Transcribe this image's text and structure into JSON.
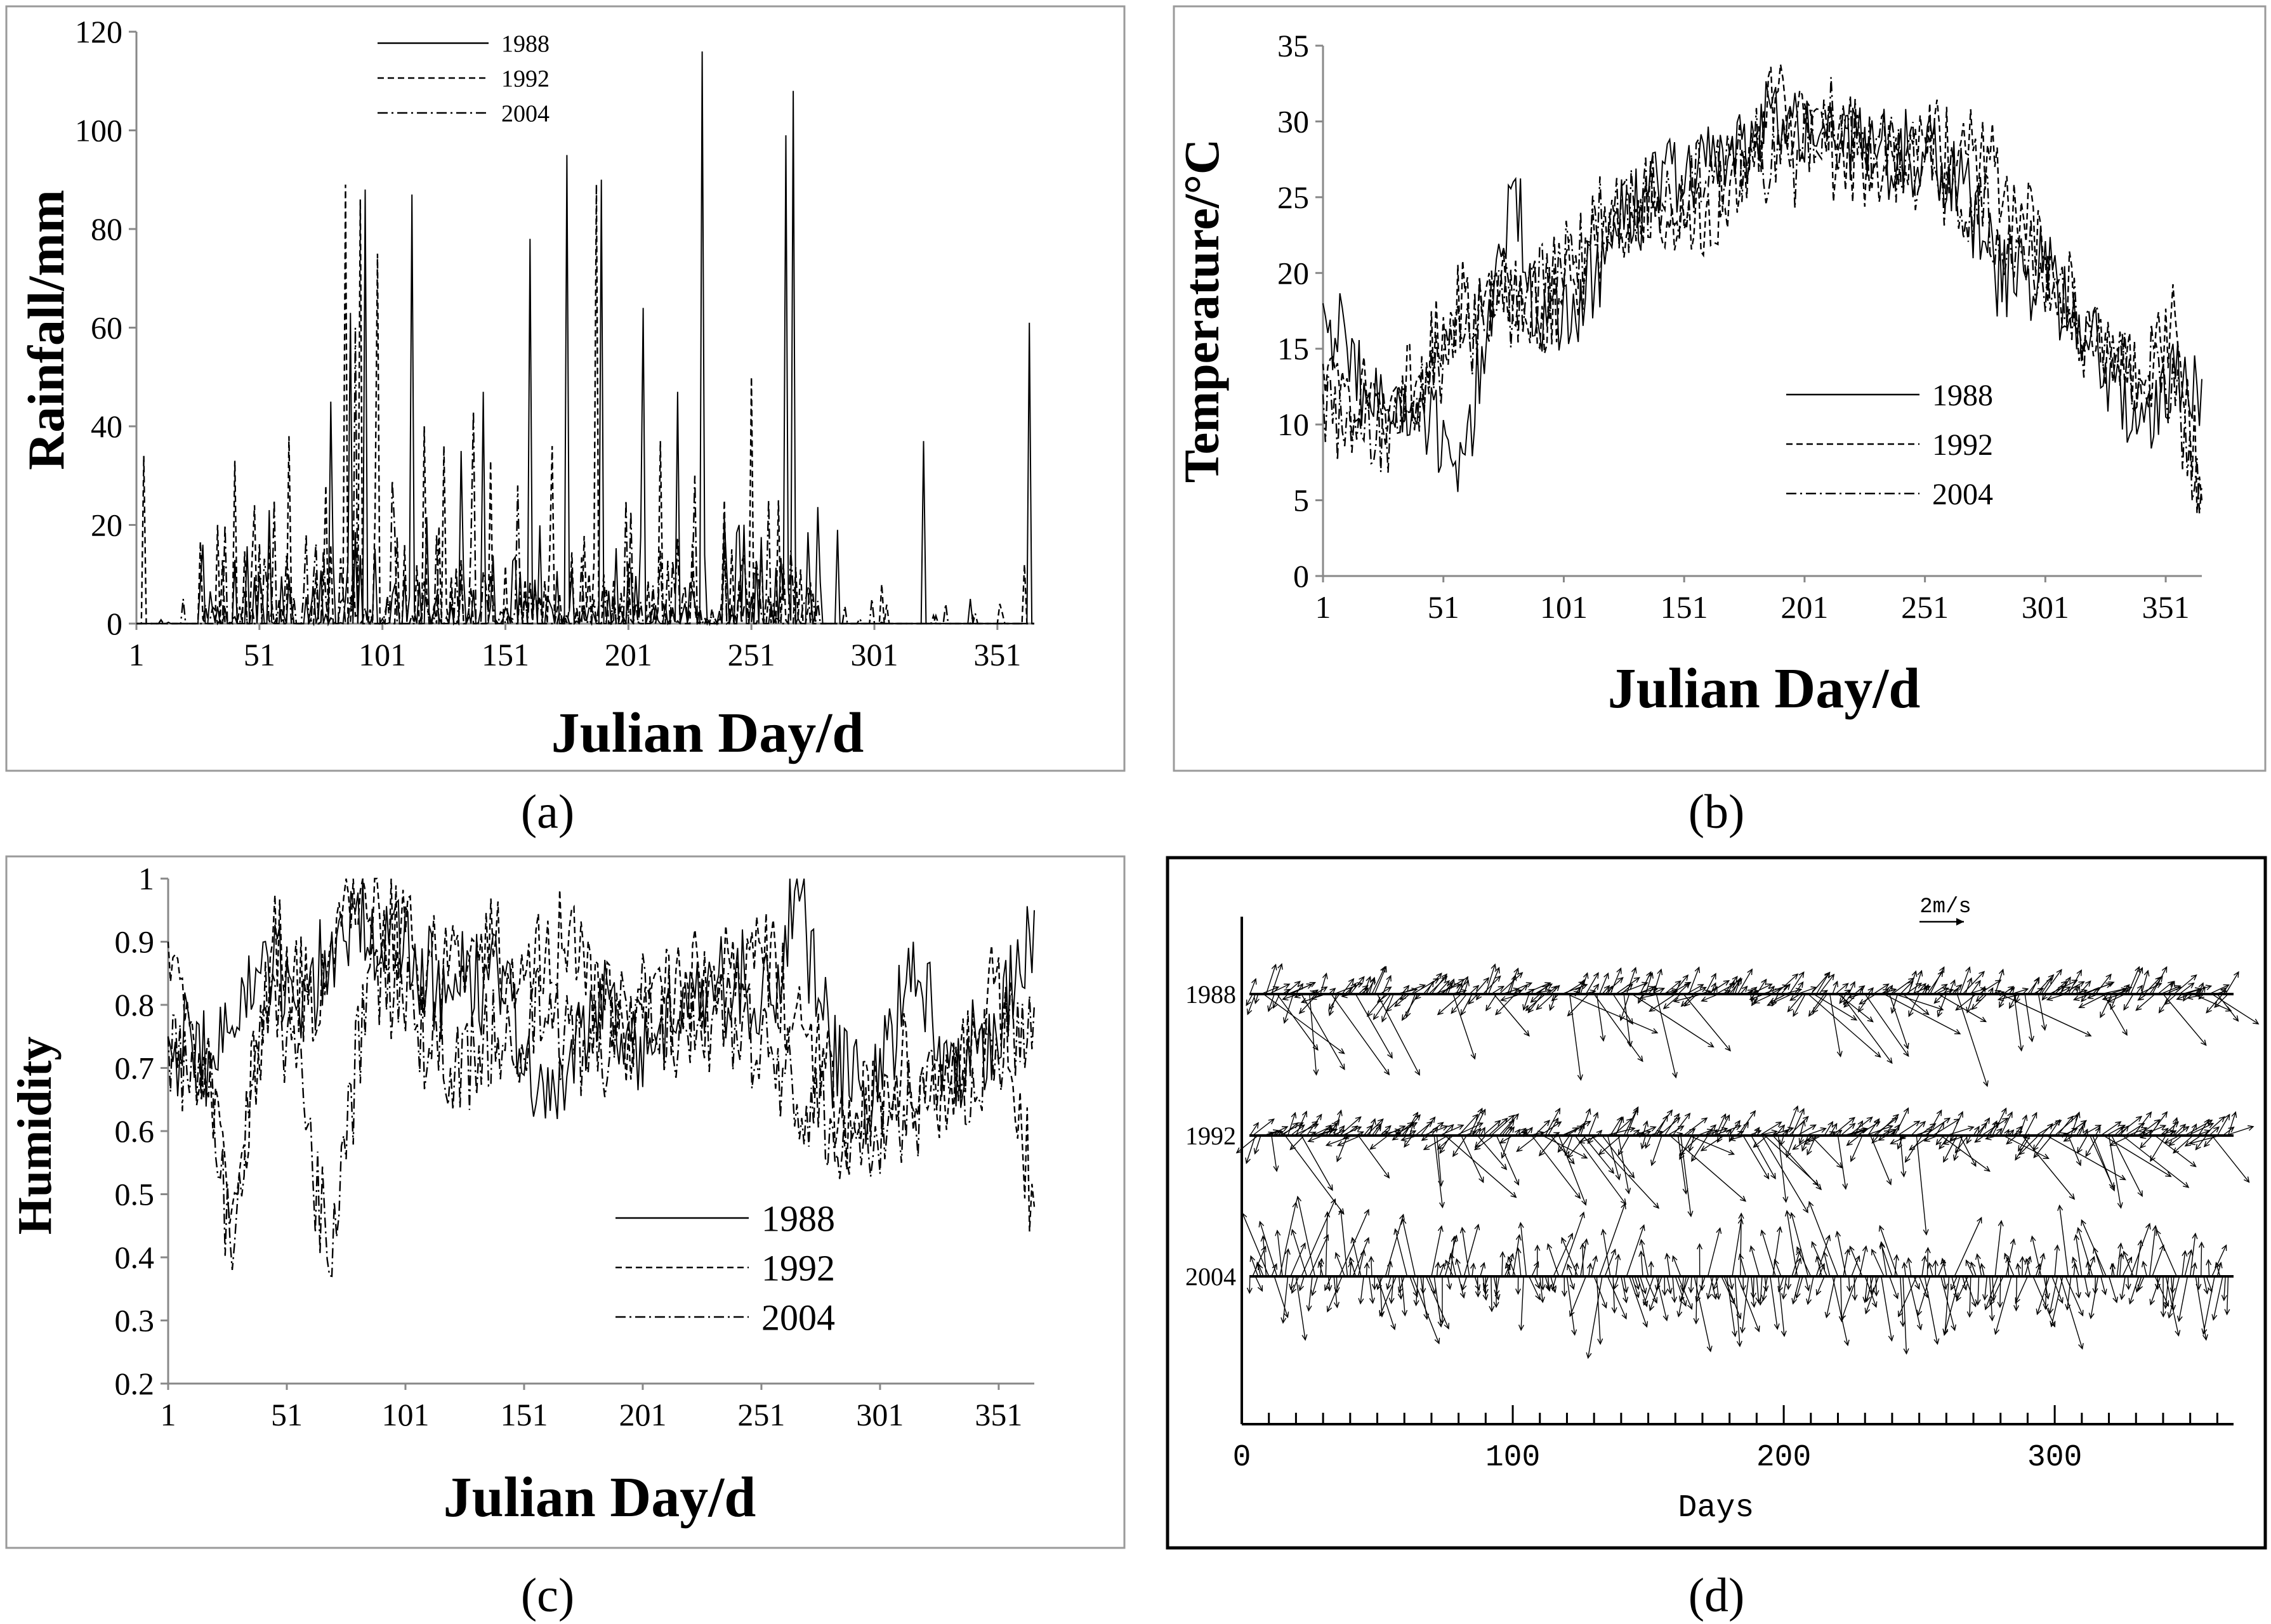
{
  "figure": {
    "panel_labels": [
      "(a)",
      "(b)",
      "(c)",
      "(d)"
    ]
  },
  "chart_data": [
    {
      "panel": "(a)",
      "type": "line",
      "xlabel": "Julian Day/d",
      "ylabel": "Rainfall/mm",
      "xlim": [
        1,
        366
      ],
      "ylim": [
        0,
        120
      ],
      "xticks": [
        1,
        51,
        101,
        151,
        201,
        251,
        301,
        351
      ],
      "yticks": [
        0,
        20,
        40,
        60,
        80,
        100,
        120
      ],
      "legend_position": "top-center",
      "series": [
        {
          "name": "1988",
          "style": "solid",
          "peaks": [
            [
              28,
              16
            ],
            [
              55,
              23
            ],
            [
              80,
              45
            ],
            [
              88,
              63
            ],
            [
              94,
              88
            ],
            [
              113,
              87
            ],
            [
              133,
              35
            ],
            [
              142,
              47
            ],
            [
              161,
              78
            ],
            [
              176,
              95
            ],
            [
              190,
              90
            ],
            [
              207,
              64
            ],
            [
              221,
              47
            ],
            [
              231,
              116
            ],
            [
              246,
              20
            ],
            [
              265,
              99
            ],
            [
              268,
              108
            ],
            [
              286,
              19
            ],
            [
              321,
              37
            ],
            [
              340,
              5
            ],
            [
              364,
              61
            ]
          ]
        },
        {
          "name": "1992",
          "style": "dashed",
          "peaks": [
            [
              4,
              34
            ],
            [
              34,
              20
            ],
            [
              41,
              33
            ],
            [
              49,
              24
            ],
            [
              63,
              38
            ],
            [
              78,
              28
            ],
            [
              86,
              89
            ],
            [
              92,
              86
            ],
            [
              99,
              75
            ],
            [
              118,
              40
            ],
            [
              126,
              36
            ],
            [
              145,
              33
            ],
            [
              170,
              36
            ],
            [
              188,
              89
            ],
            [
              214,
              37
            ],
            [
              240,
              25
            ],
            [
              251,
              50
            ],
            [
              262,
              25
            ],
            [
              304,
              8
            ],
            [
              352,
              4
            ],
            [
              362,
              12
            ]
          ]
        },
        {
          "name": "2004",
          "style": "dash-dot",
          "peaks": [
            [
              20,
              5
            ],
            [
              37,
              20
            ],
            [
              57,
              25
            ],
            [
              70,
              18
            ],
            [
              90,
              60
            ],
            [
              105,
              29
            ],
            [
              138,
              43
            ],
            [
              156,
              28
            ],
            [
              200,
              25
            ],
            [
              228,
              30
            ],
            [
              258,
              25
            ],
            [
              300,
              5
            ],
            [
              330,
              4
            ]
          ]
        }
      ]
    },
    {
      "panel": "(b)",
      "type": "line",
      "xlabel": "Julian Day/d",
      "ylabel": "Temperature/°C",
      "xlim": [
        1,
        366
      ],
      "ylim": [
        0,
        35
      ],
      "xticks": [
        1,
        51,
        101,
        151,
        201,
        251,
        301,
        351
      ],
      "yticks": [
        0,
        5,
        10,
        15,
        20,
        25,
        30,
        35
      ],
      "legend_position": "middle-right",
      "series": [
        {
          "name": "1988",
          "style": "solid",
          "points": [
            [
              1,
              18
            ],
            [
              20,
              12
            ],
            [
              40,
              10
            ],
            [
              60,
              8
            ],
            [
              72,
              19
            ],
            [
              80,
              26
            ],
            [
              90,
              17
            ],
            [
              100,
              16
            ],
            [
              120,
              22
            ],
            [
              140,
              26
            ],
            [
              160,
              27
            ],
            [
              180,
              29
            ],
            [
              195,
              31
            ],
            [
              210,
              29
            ],
            [
              230,
              28
            ],
            [
              250,
              28
            ],
            [
              265,
              26
            ],
            [
              280,
              20
            ],
            [
              300,
              20
            ],
            [
              320,
              16
            ],
            [
              340,
              10
            ],
            [
              355,
              13
            ],
            [
              366,
              13
            ]
          ]
        },
        {
          "name": "1992",
          "style": "dashed",
          "points": [
            [
              1,
              14
            ],
            [
              20,
              11
            ],
            [
              40,
              13
            ],
            [
              55,
              17
            ],
            [
              70,
              20
            ],
            [
              85,
              17
            ],
            [
              100,
              18
            ],
            [
              120,
              23
            ],
            [
              140,
              25
            ],
            [
              160,
              24
            ],
            [
              180,
              27
            ],
            [
              190,
              32
            ],
            [
              210,
              28
            ],
            [
              230,
              27
            ],
            [
              250,
              29
            ],
            [
              265,
              28
            ],
            [
              280,
              27
            ],
            [
              300,
              21
            ],
            [
              320,
              16
            ],
            [
              340,
              13
            ],
            [
              355,
              17
            ],
            [
              366,
              5
            ]
          ]
        },
        {
          "name": "2004",
          "style": "dash-dot",
          "points": [
            [
              1,
              12
            ],
            [
              15,
              9
            ],
            [
              30,
              10
            ],
            [
              45,
              12
            ],
            [
              60,
              16
            ],
            [
              80,
              18
            ],
            [
              100,
              20
            ],
            [
              120,
              24
            ],
            [
              140,
              25
            ],
            [
              160,
              26
            ],
            [
              180,
              28
            ],
            [
              195,
              27
            ],
            [
              210,
              30
            ],
            [
              230,
              28
            ],
            [
              250,
              27
            ],
            [
              270,
              25
            ],
            [
              290,
              22
            ],
            [
              310,
              17
            ],
            [
              330,
              14
            ],
            [
              350,
              14
            ],
            [
              366,
              6
            ]
          ]
        }
      ]
    },
    {
      "panel": "(c)",
      "type": "line",
      "xlabel": "Julian Day/d",
      "ylabel": "Humidity",
      "xlim": [
        1,
        366
      ],
      "ylim": [
        0.2,
        1
      ],
      "xticks": [
        1,
        51,
        101,
        151,
        201,
        251,
        301,
        351
      ],
      "yticks": [
        0.2,
        0.3,
        0.4,
        0.5,
        0.6,
        0.7,
        0.8,
        0.9,
        1
      ],
      "legend_position": "bottom-right",
      "series": [
        {
          "name": "1988",
          "style": "solid",
          "points": [
            [
              1,
              0.75
            ],
            [
              20,
              0.72
            ],
            [
              40,
              0.85
            ],
            [
              60,
              0.82
            ],
            [
              80,
              0.95
            ],
            [
              100,
              0.88
            ],
            [
              120,
              0.82
            ],
            [
              140,
              0.85
            ],
            [
              160,
              0.62
            ],
            [
              180,
              0.8
            ],
            [
              200,
              0.75
            ],
            [
              220,
              0.78
            ],
            [
              240,
              0.85
            ],
            [
              255,
              0.8
            ],
            [
              265,
              0.98
            ],
            [
              280,
              0.72
            ],
            [
              300,
              0.65
            ],
            [
              315,
              0.9
            ],
            [
              330,
              0.7
            ],
            [
              350,
              0.75
            ],
            [
              366,
              0.95
            ]
          ]
        },
        {
          "name": "1992",
          "style": "dashed",
          "points": [
            [
              1,
              0.9
            ],
            [
              15,
              0.7
            ],
            [
              30,
              0.5
            ],
            [
              45,
              0.9
            ],
            [
              60,
              0.8
            ],
            [
              75,
              0.97
            ],
            [
              90,
              0.95
            ],
            [
              110,
              0.85
            ],
            [
              130,
              0.9
            ],
            [
              150,
              0.88
            ],
            [
              170,
              0.92
            ],
            [
              190,
              0.75
            ],
            [
              210,
              0.8
            ],
            [
              230,
              0.85
            ],
            [
              250,
              0.9
            ],
            [
              270,
              0.75
            ],
            [
              290,
              0.6
            ],
            [
              310,
              0.7
            ],
            [
              330,
              0.65
            ],
            [
              350,
              0.85
            ],
            [
              366,
              0.48
            ]
          ]
        },
        {
          "name": "2004",
          "style": "dash-dot",
          "points": [
            [
              1,
              0.75
            ],
            [
              20,
              0.65
            ],
            [
              28,
              0.38
            ],
            [
              40,
              0.8
            ],
            [
              55,
              0.7
            ],
            [
              70,
              0.37
            ],
            [
              85,
              0.85
            ],
            [
              100,
              0.8
            ],
            [
              120,
              0.7
            ],
            [
              140,
              0.75
            ],
            [
              160,
              0.78
            ],
            [
              180,
              0.72
            ],
            [
              200,
              0.8
            ],
            [
              220,
              0.75
            ],
            [
              240,
              0.78
            ],
            [
              260,
              0.7
            ],
            [
              280,
              0.62
            ],
            [
              300,
              0.58
            ],
            [
              320,
              0.65
            ],
            [
              340,
              0.7
            ],
            [
              366,
              0.8
            ]
          ]
        }
      ]
    },
    {
      "panel": "(d)",
      "type": "vector",
      "xlabel": "Days",
      "xlim": [
        0,
        366
      ],
      "xticks": [
        0,
        100,
        200,
        300
      ],
      "scale_label": "2m/s",
      "series": [
        {
          "name": "1988",
          "description_free": true
        },
        {
          "name": "1992"
        },
        {
          "name": "2004"
        }
      ]
    }
  ]
}
